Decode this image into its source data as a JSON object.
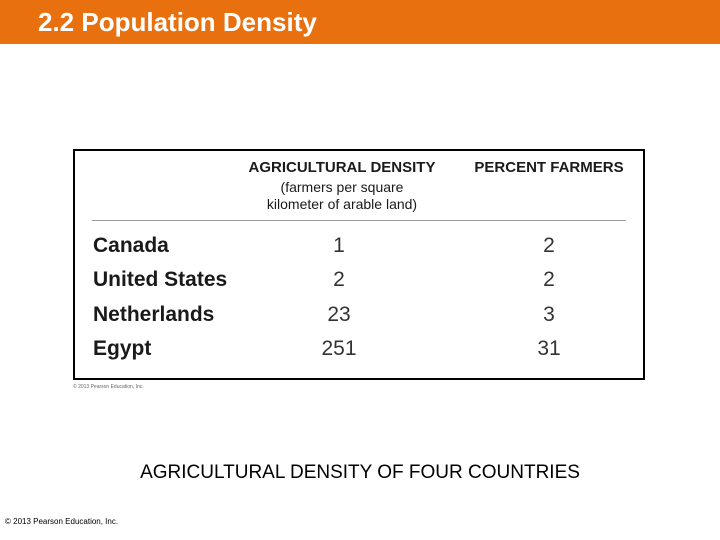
{
  "slide": {
    "title": "2.2 Population Density",
    "caption": "AGRICULTURAL DENSITY OF FOUR COUNTRIES",
    "footer_copyright": "© 2013 Pearson Education, Inc.",
    "accent_color": "#e8700f"
  },
  "table": {
    "headers": {
      "agricultural_density": "AGRICULTURAL DENSITY",
      "agricultural_density_sub_1": "(farmers per square",
      "agricultural_density_sub_2": "kilometer of arable land)",
      "percent_farmers": "PERCENT FARMERS"
    },
    "rows": [
      {
        "country": "Canada",
        "agricultural_density": "1",
        "percent_farmers": "2"
      },
      {
        "country": "United States",
        "agricultural_density": "2",
        "percent_farmers": "2"
      },
      {
        "country": "Netherlands",
        "agricultural_density": "23",
        "percent_farmers": "3"
      },
      {
        "country": "Egypt",
        "agricultural_density": "251",
        "percent_farmers": "31"
      }
    ],
    "copyright": "© 2013 Pearson Education, Inc."
  }
}
